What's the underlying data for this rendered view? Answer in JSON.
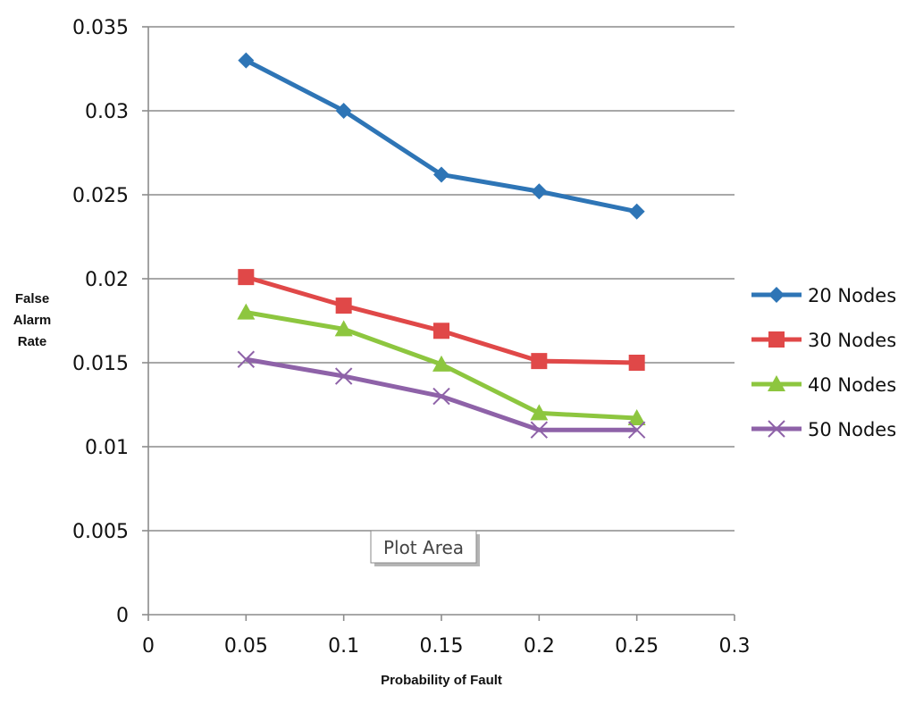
{
  "chart_data": {
    "type": "line",
    "title": "",
    "xlabel": "Probability of Fault",
    "ylabel": [
      "False",
      "Alarm",
      "Rate"
    ],
    "xlim": [
      0,
      0.3
    ],
    "ylim": [
      0,
      0.035
    ],
    "x_ticks": [
      "0",
      "0.05",
      "0.1",
      "0.15",
      "0.2",
      "0.25",
      "0.3"
    ],
    "x_tick_values": [
      0,
      0.05,
      0.1,
      0.15,
      0.2,
      0.25,
      0.3
    ],
    "y_ticks": [
      "0",
      "0.005",
      "0.01",
      "0.015",
      "0.02",
      "0.025",
      "0.03",
      "0.035"
    ],
    "y_tick_values": [
      0,
      0.005,
      0.01,
      0.015,
      0.02,
      0.025,
      0.03,
      0.035
    ],
    "grid": "horizontal",
    "legend_position": "right",
    "x": [
      0.05,
      0.1,
      0.15,
      0.2,
      0.25
    ],
    "series": [
      {
        "name": "20 Nodes",
        "color": "#2e75b6",
        "marker": "diamond",
        "values": [
          0.033,
          0.03,
          0.0262,
          0.0252,
          0.024
        ]
      },
      {
        "name": "30 Nodes",
        "color": "#e04848",
        "marker": "square",
        "values": [
          0.0201,
          0.0184,
          0.0169,
          0.0151,
          0.015
        ]
      },
      {
        "name": "40 Nodes",
        "color": "#8dc63f",
        "marker": "triangle",
        "values": [
          0.018,
          0.017,
          0.0149,
          0.012,
          0.0117
        ]
      },
      {
        "name": "50 Nodes",
        "color": "#8e62a8",
        "marker": "x",
        "values": [
          0.0152,
          0.0142,
          0.013,
          0.011,
          0.011
        ]
      }
    ],
    "annotations": [
      {
        "text": "Plot Area",
        "kind": "tooltip"
      }
    ]
  }
}
